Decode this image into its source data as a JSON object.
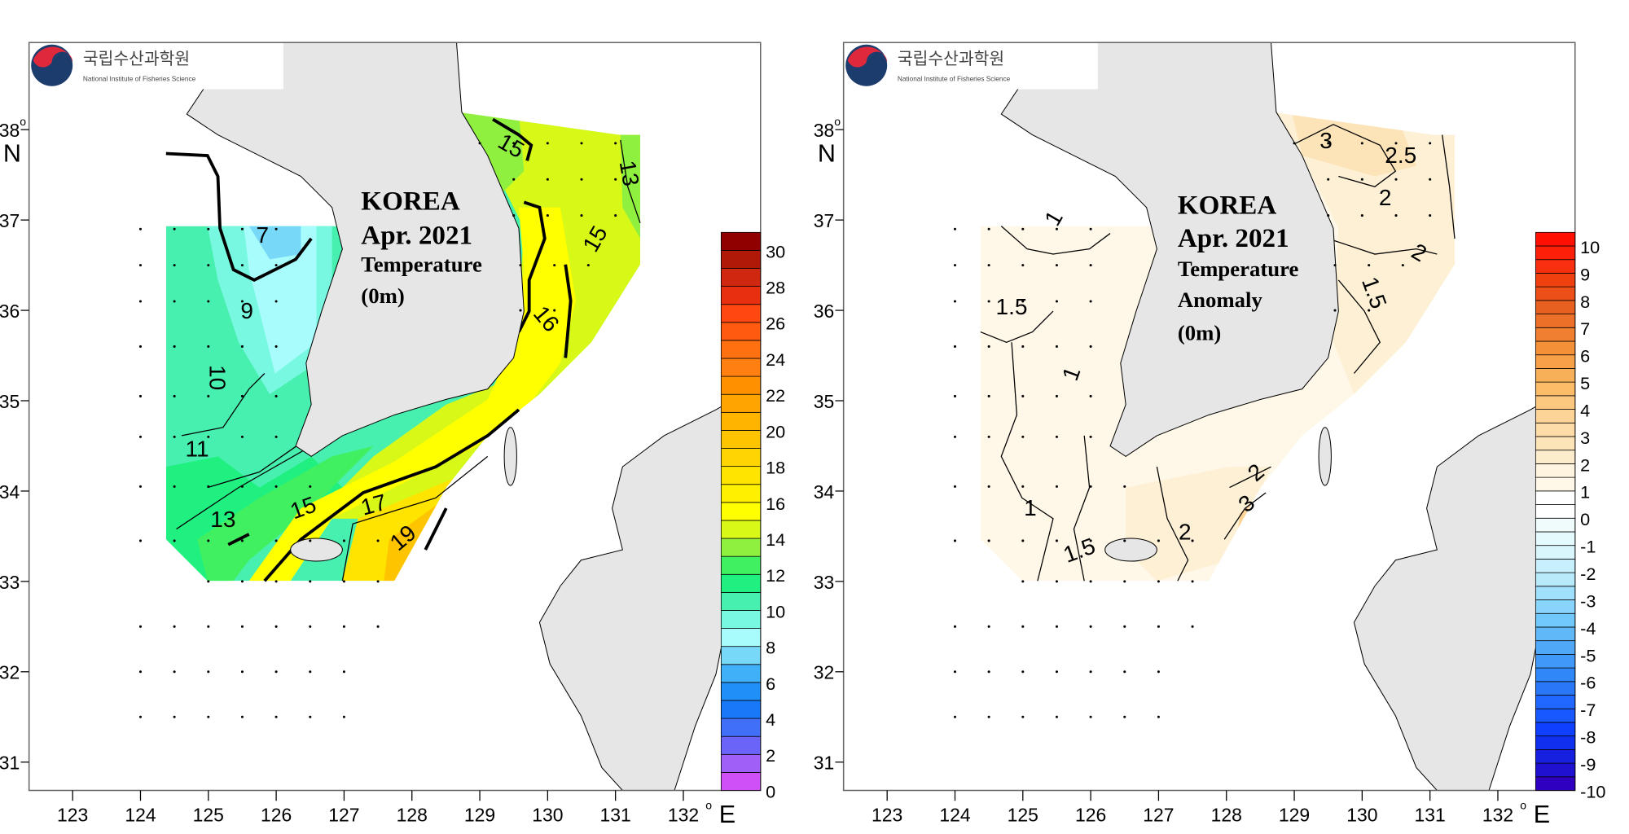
{
  "logo": {
    "korean": "국립수산과학원",
    "english": "National Institute of Fisheries Science"
  },
  "panels": [
    {
      "id": "temperature",
      "title_lines": [
        "KOREA",
        "Apr. 2021",
        "Temperature",
        "(0m)"
      ],
      "colorbar": {
        "labels": [
          "0",
          "2",
          "4",
          "6",
          "8",
          "10",
          "12",
          "14",
          "16",
          "18",
          "20",
          "22",
          "24",
          "26",
          "28",
          "30"
        ],
        "min": 0,
        "max": 31,
        "step": 1,
        "label_step": 2,
        "colors": [
          "#d050f8",
          "#a060f8",
          "#6a64f8",
          "#4070f8",
          "#1878f8",
          "#2090f8",
          "#40b0f8",
          "#78d8f8",
          "#a8fcfc",
          "#78f8e0",
          "#48f0b0",
          "#20f080",
          "#40f060",
          "#90f040",
          "#d8f818",
          "#ffff00",
          "#fff000",
          "#ffe400",
          "#ffd400",
          "#ffc400",
          "#ffb400",
          "#ffa400",
          "#ff9000",
          "#ff8010",
          "#ff7010",
          "#ff5a10",
          "#ff4810",
          "#e83010",
          "#d02810",
          "#b01808",
          "#900000"
        ]
      },
      "contour_labels": [
        "7",
        "9",
        "10",
        "11",
        "13",
        "15",
        "17",
        "19",
        "15",
        "13",
        "15",
        "16"
      ]
    },
    {
      "id": "anomaly",
      "title_lines": [
        "KOREA",
        "Apr. 2021",
        "Temperature",
        "Anomaly",
        "(0m)"
      ],
      "colorbar": {
        "labels": [
          "-10",
          "-9",
          "-8",
          "-7",
          "-6",
          "-5",
          "-4",
          "-3",
          "-2",
          "-1",
          "0",
          "1",
          "2",
          "3",
          "4",
          "5",
          "6",
          "7",
          "8",
          "9",
          "10"
        ],
        "min": -10,
        "max": 10.5,
        "step": 0.5,
        "label_step": 1,
        "colors": [
          "#3000c0",
          "#2010d0",
          "#1820e0",
          "#1030f0",
          "#1040ff",
          "#1858ff",
          "#2068ff",
          "#2878f8",
          "#3088f8",
          "#4098f8",
          "#50a8f8",
          "#60b8f8",
          "#70c8fc",
          "#88d4fc",
          "#a0e0fc",
          "#b8eafc",
          "#c8f0fc",
          "#d8f6fc",
          "#e4fafc",
          "#f0fcfc",
          "#ffffff",
          "#ffffff",
          "#fff8e8",
          "#fff4e0",
          "#fdeccc",
          "#fde4b8",
          "#fddca8",
          "#fdd498",
          "#fcc880",
          "#fcbc68",
          "#f8b058",
          "#f8a048",
          "#f49038",
          "#f08030",
          "#ec7028",
          "#e86020",
          "#ec5018",
          "#f04010",
          "#f83010",
          "#fc2008",
          "#ff1000"
        ]
      },
      "contour_labels": [
        "3",
        "2.5",
        "2",
        "2",
        "1.5",
        "1",
        "1.5",
        "1",
        "1",
        "1.5",
        "2",
        "2",
        "3"
      ]
    }
  ],
  "axes": {
    "lon_labels": [
      "123",
      "124",
      "125",
      "126",
      "127",
      "128",
      "129",
      "130",
      "131",
      "132"
    ],
    "lat_labels": [
      "38",
      "37",
      "36",
      "35",
      "34",
      "33",
      "32",
      "31"
    ],
    "lon_unit": "E",
    "lat_unit": "N",
    "degree": "o"
  }
}
